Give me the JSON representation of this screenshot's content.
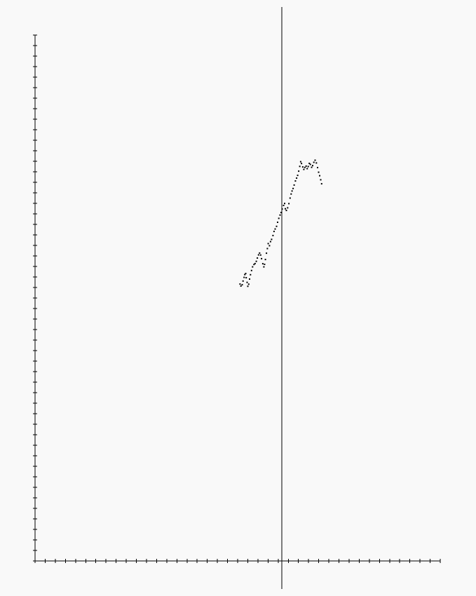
{
  "chart_data": {
    "type": "scatter",
    "title": "",
    "xlabel": "",
    "ylabel": "",
    "grid": false,
    "legend": "none",
    "axis_ticks": {
      "x_count": 40,
      "y_count": 50
    },
    "x_range": [
      -10,
      13
    ],
    "y_range": [
      -30,
      5
    ],
    "marker_color": "#000000",
    "axis_color": "#000000",
    "background": "#f9f9f9",
    "series": [
      {
        "points": [
          [
            -2.37,
            -11.57
          ],
          [
            -2.32,
            -11.7
          ],
          [
            -2.25,
            -11.62
          ],
          [
            -2.2,
            -11.37
          ],
          [
            -2.14,
            -11.13
          ],
          [
            -2.1,
            -10.94
          ],
          [
            -2.05,
            -10.87
          ],
          [
            -2.02,
            -11.15
          ],
          [
            -1.97,
            -11.46
          ],
          [
            -1.93,
            -11.72
          ],
          [
            -1.88,
            -11.58
          ],
          [
            -1.83,
            -11.24
          ],
          [
            -1.78,
            -10.95
          ],
          [
            -1.72,
            -10.67
          ],
          [
            -1.66,
            -10.43
          ],
          [
            -1.58,
            -10.27
          ],
          [
            -1.52,
            -10.21
          ],
          [
            -1.45,
            -10.06
          ],
          [
            -1.39,
            -9.84
          ],
          [
            -1.32,
            -9.63
          ],
          [
            -1.26,
            -9.51
          ],
          [
            -1.2,
            -9.64
          ],
          [
            -1.15,
            -9.88
          ],
          [
            -1.08,
            -10.22
          ],
          [
            -1.02,
            -10.43
          ],
          [
            -0.98,
            -10.26
          ],
          [
            -0.93,
            -9.94
          ],
          [
            -0.87,
            -9.52
          ],
          [
            -0.82,
            -9.21
          ],
          [
            -0.77,
            -8.88
          ],
          [
            -0.7,
            -9.02
          ],
          [
            -0.64,
            -8.75
          ],
          [
            -0.58,
            -8.6
          ],
          [
            -0.5,
            -8.34
          ],
          [
            -0.44,
            -8.07
          ],
          [
            -0.38,
            -7.91
          ],
          [
            -0.3,
            -7.73
          ],
          [
            -0.24,
            -7.46
          ],
          [
            -0.17,
            -7.2
          ],
          [
            -0.1,
            -6.98
          ],
          [
            -0.04,
            -6.81
          ],
          [
            0.02,
            -6.58
          ],
          [
            0.1,
            -6.34
          ],
          [
            0.16,
            -6.21
          ],
          [
            0.2,
            -6.56
          ],
          [
            0.26,
            -6.67
          ],
          [
            0.33,
            -6.5
          ],
          [
            0.4,
            -6.22
          ],
          [
            0.47,
            -5.85
          ],
          [
            0.53,
            -5.58
          ],
          [
            0.58,
            -5.38
          ],
          [
            0.64,
            -5.21
          ],
          [
            0.7,
            -4.98
          ],
          [
            0.77,
            -4.71
          ],
          [
            0.84,
            -4.52
          ],
          [
            0.9,
            -4.34
          ],
          [
            0.96,
            -4.06
          ],
          [
            1.02,
            -3.74
          ],
          [
            1.07,
            -3.43
          ],
          [
            1.12,
            -3.55
          ],
          [
            1.19,
            -3.78
          ],
          [
            1.25,
            -3.94
          ],
          [
            1.31,
            -3.81
          ],
          [
            1.38,
            -3.72
          ],
          [
            1.44,
            -3.89
          ],
          [
            1.5,
            -3.75
          ],
          [
            1.56,
            -3.54
          ],
          [
            1.62,
            -3.61
          ],
          [
            1.69,
            -3.8
          ],
          [
            1.75,
            -3.69
          ],
          [
            1.82,
            -3.47
          ],
          [
            1.89,
            -3.33
          ],
          [
            1.96,
            -3.51
          ],
          [
            2.03,
            -3.82
          ],
          [
            2.09,
            -4.13
          ],
          [
            2.15,
            -4.36
          ],
          [
            2.21,
            -4.63
          ],
          [
            2.26,
            -4.9
          ]
        ]
      }
    ]
  }
}
